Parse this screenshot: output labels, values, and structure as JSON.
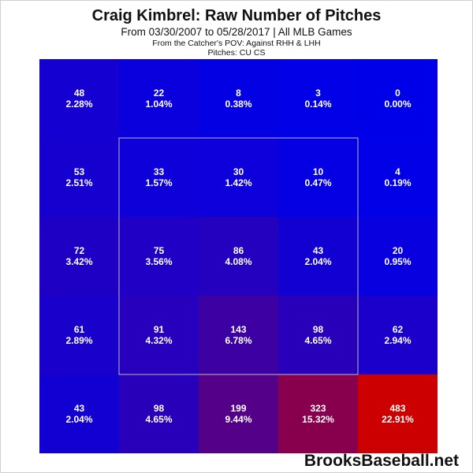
{
  "chart_data": {
    "type": "heatmap",
    "title": "Craig Kimbrel: Raw Number of Pitches",
    "subtitle": "From 03/30/2007 to 05/28/2017 | All MLB Games",
    "pov_line": "From the Catcher's POV:  Against RHH & LHH",
    "pitches_line": "Pitches:  CU  CS",
    "rows": 5,
    "cols": 5,
    "counts": [
      [
        48,
        22,
        8,
        3,
        0
      ],
      [
        53,
        33,
        30,
        10,
        4
      ],
      [
        72,
        75,
        86,
        43,
        20
      ],
      [
        61,
        91,
        143,
        98,
        62
      ],
      [
        43,
        98,
        199,
        323,
        483
      ]
    ],
    "percents": [
      [
        "2.28%",
        "1.04%",
        "0.38%",
        "0.14%",
        "0.00%"
      ],
      [
        "2.51%",
        "1.57%",
        "1.42%",
        "0.47%",
        "0.19%"
      ],
      [
        "3.42%",
        "3.56%",
        "4.08%",
        "2.04%",
        "0.95%"
      ],
      [
        "2.89%",
        "4.32%",
        "6.78%",
        "4.65%",
        "2.94%"
      ],
      [
        "2.04%",
        "4.65%",
        "9.44%",
        "15.32%",
        "22.91%"
      ]
    ],
    "strike_zone": "inner 3x3 cells",
    "color_low": "#0000e8",
    "color_high": "#cc0000"
  },
  "watermark": "BrooksBaseball.net"
}
